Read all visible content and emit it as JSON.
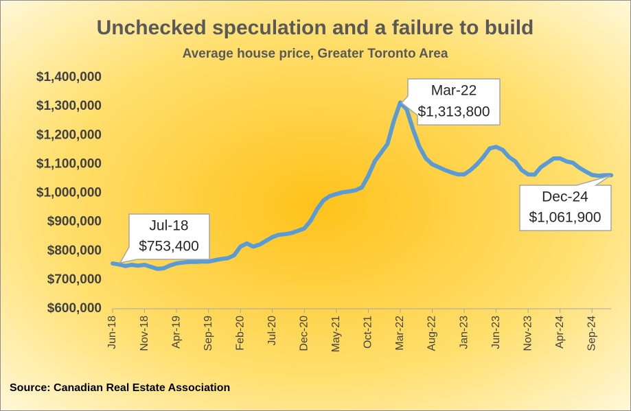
{
  "chart_data": {
    "type": "line",
    "title": "Unchecked speculation and a failure to build",
    "subtitle": "Average house price, Greater Toronto Area",
    "source": "Source: Canadian Real Estate Association",
    "categories": [
      "Jun-18",
      null,
      null,
      null,
      null,
      "Nov-18",
      null,
      null,
      null,
      null,
      "Apr-19",
      null,
      null,
      null,
      null,
      "Sep-19",
      null,
      null,
      null,
      null,
      "Feb-20",
      null,
      null,
      null,
      null,
      "Jul-20",
      null,
      null,
      null,
      null,
      "Dec-20",
      null,
      null,
      null,
      null,
      "May-21",
      null,
      null,
      null,
      null,
      "Oct-21",
      null,
      null,
      null,
      null,
      "Mar-22",
      null,
      null,
      null,
      null,
      "Aug-22",
      null,
      null,
      null,
      null,
      "Jan-23",
      null,
      null,
      null,
      null,
      "Jun-23",
      null,
      null,
      null,
      null,
      "Nov-23",
      null,
      null,
      null,
      null,
      "Apr-24",
      null,
      null,
      null,
      null,
      "Sep-24",
      null,
      null,
      null
    ],
    "series": [
      {
        "name": "Average house price",
        "color": "#5b9bd5",
        "values": [
          757000,
          753400,
          748000,
          752000,
          749000,
          752000,
          745000,
          738000,
          740000,
          750000,
          757000,
          760000,
          762000,
          762000,
          763000,
          763000,
          768000,
          772000,
          775000,
          785000,
          815000,
          826000,
          815000,
          822000,
          835000,
          848000,
          856000,
          858000,
          862000,
          870000,
          878000,
          905000,
          945000,
          975000,
          990000,
          997000,
          1003000,
          1006000,
          1010000,
          1020000,
          1060000,
          1110000,
          1140000,
          1170000,
          1250000,
          1313800,
          1290000,
          1220000,
          1160000,
          1120000,
          1100000,
          1090000,
          1080000,
          1072000,
          1065000,
          1065000,
          1080000,
          1100000,
          1125000,
          1155000,
          1160000,
          1150000,
          1125000,
          1110000,
          1080000,
          1065000,
          1064000,
          1090000,
          1105000,
          1120000,
          1120000,
          1110000,
          1105000,
          1088000,
          1075000,
          1063000,
          1060000,
          1062000,
          1061900
        ]
      }
    ],
    "ylim": [
      600000,
      1400000
    ],
    "yticks": [
      {
        "value": 600000,
        "label": "$600,000"
      },
      {
        "value": 700000,
        "label": "$700,000"
      },
      {
        "value": 800000,
        "label": "$800,000"
      },
      {
        "value": 900000,
        "label": "$900,000"
      },
      {
        "value": 1000000,
        "label": "$1,000,000"
      },
      {
        "value": 1100000,
        "label": "$1,100,000"
      },
      {
        "value": 1200000,
        "label": "$1,200,000"
      },
      {
        "value": 1300000,
        "label": "$1,300,000"
      },
      {
        "value": 1400000,
        "label": "$1,400,000"
      }
    ],
    "grid": false,
    "annotations": [
      {
        "lines": [
          "Jul-18",
          "$753,400"
        ]
      },
      {
        "lines": [
          "Mar-22",
          "$1,313,800"
        ]
      },
      {
        "lines": [
          "Dec-24",
          "$1,061,900"
        ]
      }
    ]
  }
}
